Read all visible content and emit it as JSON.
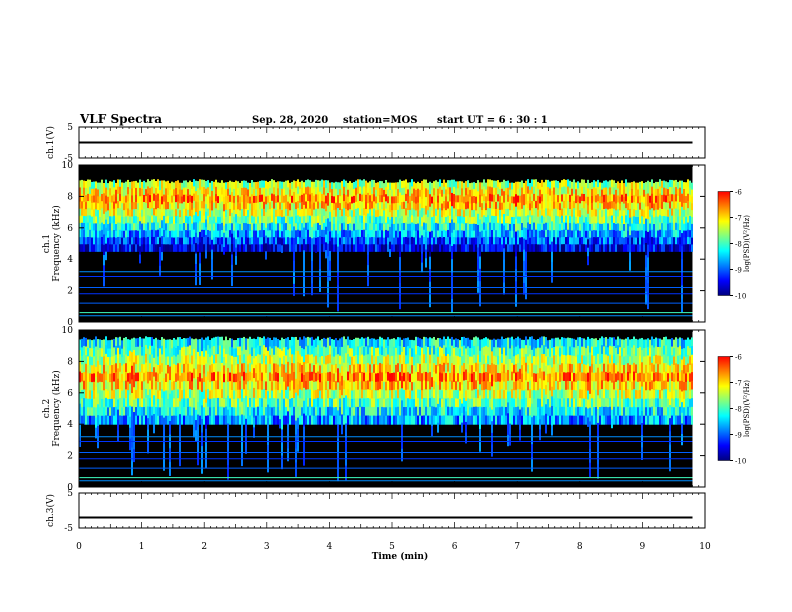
{
  "header": {
    "title": "VLF Spectra",
    "date": "Sep. 28, 2020",
    "station": "station=MOS",
    "start_ut": "start UT =  6 : 30 : 1"
  },
  "colors": {
    "colormap": [
      "#00007f",
      "#0000ff",
      "#0080ff",
      "#00ffff",
      "#80ff80",
      "#ffff00",
      "#ff8000",
      "#ff0000",
      "#ffffff"
    ],
    "background": "#000000",
    "axis": "#000000"
  },
  "chart_data": [
    {
      "type": "line",
      "ylabel": "ch.1(V)",
      "xlim": [
        0,
        10
      ],
      "ylim": [
        -5,
        5
      ],
      "yticks": [
        "5",
        "-5"
      ],
      "series": [
        {
          "x": [
            0,
            9.8
          ],
          "values": [
            0,
            0
          ]
        }
      ]
    },
    {
      "type": "heatmap",
      "ylabel": "ch.1\nFrequency (kHz)",
      "xlim": [
        0,
        10
      ],
      "ylim": [
        0,
        10
      ],
      "yticks": [
        "0",
        "2",
        "4",
        "6",
        "8",
        "10"
      ],
      "data_extent_min": 9.8,
      "band_center_khz": 7.8,
      "band_low_khz": 4.5,
      "band_high_khz": 9.1,
      "colorbar": {
        "label": "log(PSD)(V²/Hz)",
        "range": [
          -10,
          -6
        ],
        "ticks": [
          "-6",
          "-7",
          "-8",
          "-9",
          "-10"
        ]
      }
    },
    {
      "type": "heatmap",
      "ylabel": "ch.2\nFrequency (kHz)",
      "xlim": [
        0,
        10
      ],
      "ylim": [
        0,
        10
      ],
      "yticks": [
        "0",
        "2",
        "4",
        "6",
        "8",
        "10"
      ],
      "data_extent_min": 9.8,
      "band_center_khz": 7.0,
      "band_low_khz": 4.0,
      "band_high_khz": 9.6,
      "colorbar": {
        "label": "log(PSD)(V²/Hz)",
        "range": [
          -10,
          -6
        ],
        "ticks": [
          "-6",
          "-7",
          "-8",
          "-9",
          "-10"
        ]
      }
    },
    {
      "type": "line",
      "ylabel": "ch.3(V)",
      "xlim": [
        0,
        10
      ],
      "ylim": [
        -5,
        5
      ],
      "yticks": [
        "5",
        "-5"
      ],
      "series": [
        {
          "x": [
            0,
            9.8
          ],
          "values": [
            -2,
            -2
          ]
        }
      ],
      "xlabel": "Time (min)",
      "xticks": [
        "0",
        "1",
        "2",
        "3",
        "4",
        "5",
        "6",
        "7",
        "8",
        "9",
        "10"
      ]
    }
  ]
}
